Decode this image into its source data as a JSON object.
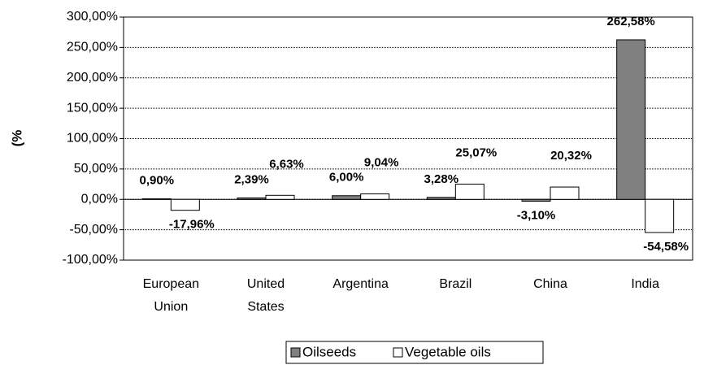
{
  "chart_data": {
    "type": "bar",
    "y_label": "(%",
    "categories": [
      "European Union",
      "United States",
      "Argentina",
      "Brazil",
      "China",
      "India"
    ],
    "series": [
      {
        "name": "Oilseeds",
        "color": "#808080",
        "values": [
          0.9,
          2.39,
          6.0,
          3.28,
          -3.1,
          262.58
        ],
        "value_labels": [
          "0,90%",
          "2,39%",
          "6,00%",
          "3,28%",
          "-3,10%",
          "262,58%"
        ]
      },
      {
        "name": "Vegetable oils",
        "color": "#ffffff",
        "values": [
          -17.96,
          6.63,
          9.04,
          25.07,
          20.32,
          -54.58
        ],
        "value_labels": [
          "-17,96%",
          "6,63%",
          "9,04%",
          "25,07%",
          "20,32%",
          "-54,58%"
        ]
      }
    ],
    "ylim": [
      -100,
      300
    ],
    "yticks": [
      {
        "value": -100,
        "label": "-100,00%"
      },
      {
        "value": -50,
        "label": "-50,00%"
      },
      {
        "value": 0,
        "label": "0,00%"
      },
      {
        "value": 50,
        "label": "50,00%"
      },
      {
        "value": 100,
        "label": "100,00%"
      },
      {
        "value": 150,
        "label": "150,00%"
      },
      {
        "value": 200,
        "label": "200,00%"
      },
      {
        "value": 250,
        "label": "250,00%"
      },
      {
        "value": 300,
        "label": "300,00%"
      }
    ],
    "grid": true,
    "legend": "bottom"
  }
}
